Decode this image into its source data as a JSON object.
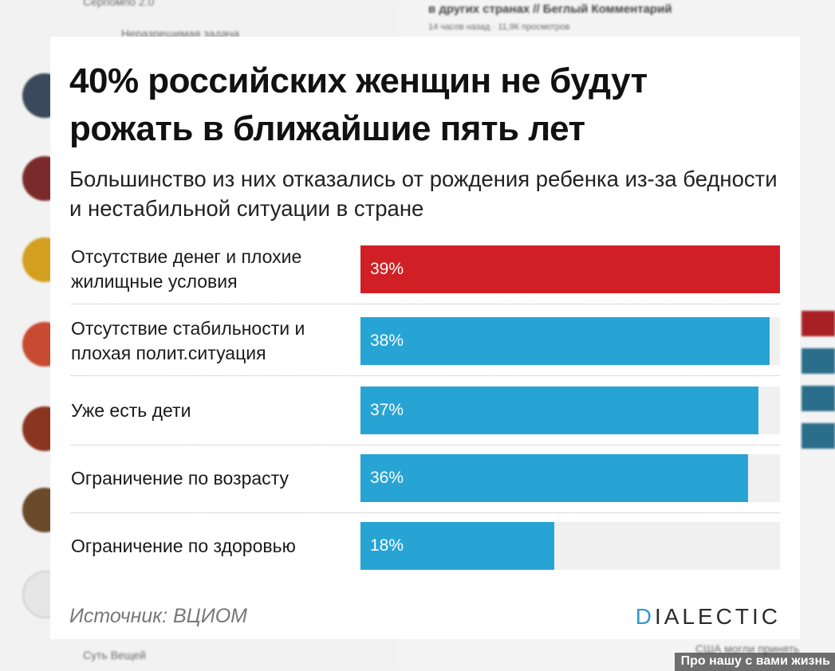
{
  "background": {
    "left_items": [
      "Серпомпо 2.0",
      "Неразрешимая задача",
      "Суть Вещей"
    ],
    "right_items": [
      "в других странах // Беглый Комментарий",
      "14 часов назад · 11,9К просмотров",
      "США могли принять"
    ]
  },
  "chart_data": {
    "type": "bar",
    "orientation": "horizontal",
    "title": "40% российских женщин не будут рожать в ближайшие пять лет",
    "subtitle": "Большинство из них отказались от рождения ребенка из-за бедности и нестабильной ситуации в стране",
    "categories": [
      "Отсутствие денег и плохие жилищные условия",
      "Отсутствие стабильности и плохая полит.ситуация",
      "Уже есть дети",
      "Ограничение по возрасту",
      "Ограничение по здоровью"
    ],
    "values": [
      39,
      38,
      37,
      36,
      18
    ],
    "value_labels": [
      "39%",
      "38%",
      "37%",
      "36%",
      "18%"
    ],
    "xlim": [
      0,
      39
    ],
    "unit": "%",
    "highlight_index": 0,
    "colors": {
      "highlight": "#d02026",
      "bar": "#27a4d4",
      "track": "#f0f0f0"
    },
    "source": "Источник: ВЦИОМ",
    "brand": "DIALECTIC",
    "brand_accent": "#2f99cf"
  },
  "overlay_text": "Про нашу с вами жизнь"
}
